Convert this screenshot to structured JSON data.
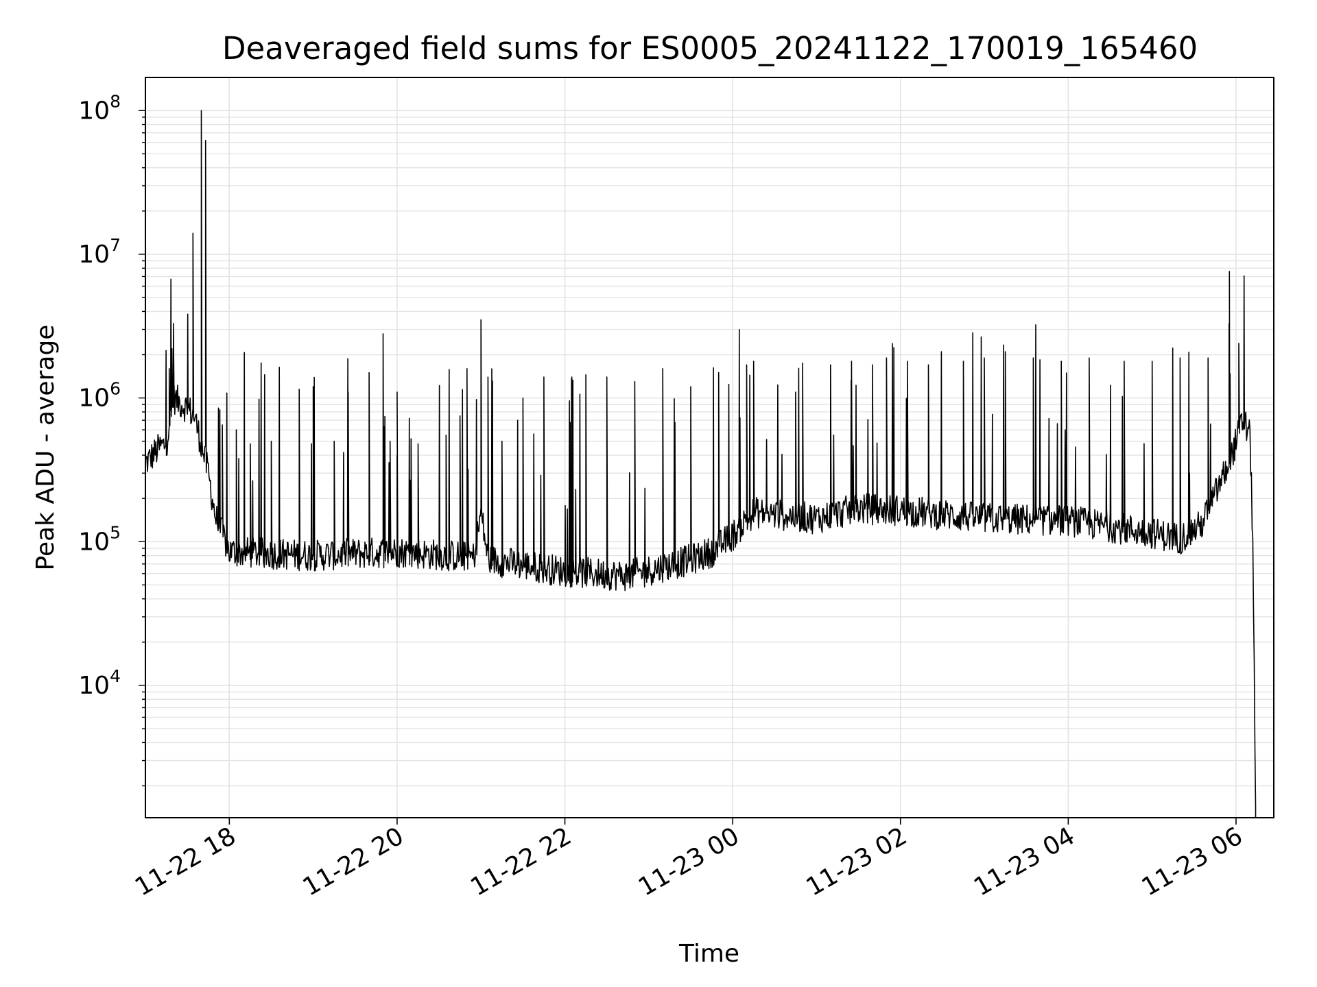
{
  "chart_data": {
    "type": "line",
    "title": "Deaveraged field sums for ES0005_20241122_170019_165460",
    "xlabel": "Time",
    "ylabel": "Peak ADU - average",
    "yscale": "log",
    "ylim": [
      1200,
      170000000
    ],
    "xlim": [
      "2024-11-22 17:00",
      "2024-11-23 06:27"
    ],
    "grid": "on",
    "line_color": "#000000",
    "grid_color": "#e3e3e3",
    "x_ticks": [
      {
        "t": "2024-11-22 18:00",
        "label": "11-22 18"
      },
      {
        "t": "2024-11-22 20:00",
        "label": "11-22 20"
      },
      {
        "t": "2024-11-22 22:00",
        "label": "11-22 22"
      },
      {
        "t": "2024-11-23 00:00",
        "label": "11-23 00"
      },
      {
        "t": "2024-11-23 02:00",
        "label": "11-23 02"
      },
      {
        "t": "2024-11-23 04:00",
        "label": "11-23 04"
      },
      {
        "t": "2024-11-23 06:00",
        "label": "11-23 06"
      }
    ],
    "y_ticks": [
      {
        "v": 10000,
        "base": "10",
        "exp": "4"
      },
      {
        "v": 100000,
        "base": "10",
        "exp": "5"
      },
      {
        "v": 1000000,
        "base": "10",
        "exp": "6"
      },
      {
        "v": 10000000,
        "base": "10",
        "exp": "7"
      },
      {
        "v": 100000000,
        "base": "10",
        "exp": "8"
      }
    ],
    "series": [
      {
        "baseline": [
          [
            "2024-11-22 17:00",
            350000
          ],
          [
            "2024-11-22 17:10",
            450000
          ],
          [
            "2024-11-22 17:15",
            480000
          ],
          [
            "2024-11-22 17:20",
            1000000
          ],
          [
            "2024-11-22 17:30",
            850000
          ],
          [
            "2024-11-22 17:35",
            750000
          ],
          [
            "2024-11-22 17:45",
            300000
          ],
          [
            "2024-11-22 17:50",
            150000
          ],
          [
            "2024-11-22 18:00",
            85000
          ],
          [
            "2024-11-22 19:00",
            80000
          ],
          [
            "2024-11-22 20:00",
            85000
          ],
          [
            "2024-11-22 20:55",
            78000
          ],
          [
            "2024-11-22 21:00",
            160000
          ],
          [
            "2024-11-22 21:05",
            75000
          ],
          [
            "2024-11-22 22:00",
            62000
          ],
          [
            "2024-11-22 22:45",
            58000
          ],
          [
            "2024-11-22 23:30",
            75000
          ],
          [
            "2024-11-22 23:45",
            85000
          ],
          [
            "2024-11-23 00:00",
            110000
          ],
          [
            "2024-11-23 00:15",
            160000
          ],
          [
            "2024-11-23 01:00",
            145000
          ],
          [
            "2024-11-23 01:30",
            170000
          ],
          [
            "2024-11-23 02:00",
            165000
          ],
          [
            "2024-11-23 03:00",
            145000
          ],
          [
            "2024-11-23 04:00",
            140000
          ],
          [
            "2024-11-23 05:00",
            115000
          ],
          [
            "2024-11-23 05:20",
            105000
          ],
          [
            "2024-11-23 05:35",
            130000
          ],
          [
            "2024-11-23 05:55",
            350000
          ],
          [
            "2024-11-23 06:05",
            700000
          ],
          [
            "2024-11-23 06:10",
            550000
          ],
          [
            "2024-11-23 06:12",
            100000
          ],
          [
            "2024-11-23 06:13",
            15000
          ],
          [
            "2024-11-23 06:14",
            1200
          ]
        ],
        "spikes": [
          [
            "2024-11-22 17:17",
            1600000
          ],
          [
            "2024-11-22 17:19",
            2200000
          ],
          [
            "2024-11-22 17:20",
            3300000
          ],
          [
            "2024-11-22 17:34",
            14000000
          ],
          [
            "2024-11-22 17:40",
            100000000
          ],
          [
            "2024-11-22 17:43",
            62000000
          ],
          [
            "2024-11-22 17:55",
            650000
          ],
          [
            "2024-11-22 18:05",
            600000
          ],
          [
            "2024-11-22 18:15",
            480000
          ],
          [
            "2024-11-22 18:30",
            500000
          ],
          [
            "2024-11-22 18:50",
            1150000
          ],
          [
            "2024-11-22 19:00",
            1200000
          ],
          [
            "2024-11-22 19:15",
            500000
          ],
          [
            "2024-11-22 19:25",
            1100000
          ],
          [
            "2024-11-22 19:40",
            1500000
          ],
          [
            "2024-11-22 19:55",
            500000
          ],
          [
            "2024-11-22 20:10",
            520000
          ],
          [
            "2024-11-22 20:00",
            400000
          ],
          [
            "2024-11-22 19:50",
            2800000
          ],
          [
            "2024-11-22 20:00",
            1100000
          ],
          [
            "2024-11-22 20:15",
            480000
          ],
          [
            "2024-11-22 20:35",
            550000
          ],
          [
            "2024-11-22 20:45",
            750000
          ],
          [
            "2024-11-22 20:50",
            1600000
          ],
          [
            "2024-11-22 21:00",
            3500000
          ],
          [
            "2024-11-22 21:05",
            1400000
          ],
          [
            "2024-11-22 21:15",
            500000
          ],
          [
            "2024-11-22 21:30",
            1000000
          ],
          [
            "2024-11-22 21:45",
            1400000
          ],
          [
            "2024-11-22 22:05",
            1400000
          ],
          [
            "2024-11-22 22:15",
            1450000
          ],
          [
            "2024-11-22 22:30",
            1400000
          ],
          [
            "2024-11-22 22:50",
            1300000
          ],
          [
            "2024-11-22 23:10",
            1600000
          ],
          [
            "2024-11-22 23:30",
            1200000
          ],
          [
            "2024-11-22 23:50",
            1500000
          ],
          [
            "2024-11-23 00:10",
            1700000
          ],
          [
            "2024-11-23 00:15",
            1800000
          ],
          [
            "2024-11-23 00:45",
            1100000
          ],
          [
            "2024-11-23 00:50",
            1750000
          ],
          [
            "2024-11-23 01:10",
            1700000
          ],
          [
            "2024-11-23 01:25",
            1800000
          ],
          [
            "2024-11-23 01:40",
            1700000
          ],
          [
            "2024-11-23 01:50",
            1900000
          ],
          [
            "2024-11-23 02:05",
            1800000
          ],
          [
            "2024-11-23 02:20",
            1700000
          ],
          [
            "2024-11-23 02:45",
            1800000
          ],
          [
            "2024-11-23 03:00",
            1900000
          ],
          [
            "2024-11-23 03:15",
            2100000
          ],
          [
            "2024-11-23 03:35",
            1900000
          ],
          [
            "2024-11-23 03:55",
            1800000
          ],
          [
            "2024-11-23 04:15",
            1900000
          ],
          [
            "2024-11-23 04:40",
            1800000
          ],
          [
            "2024-11-23 05:00",
            1800000
          ],
          [
            "2024-11-23 05:20",
            1900000
          ],
          [
            "2024-11-23 05:40",
            1900000
          ],
          [
            "2024-11-23 05:55",
            3300000
          ],
          [
            "2024-11-23 06:02",
            2400000
          ]
        ]
      }
    ]
  }
}
